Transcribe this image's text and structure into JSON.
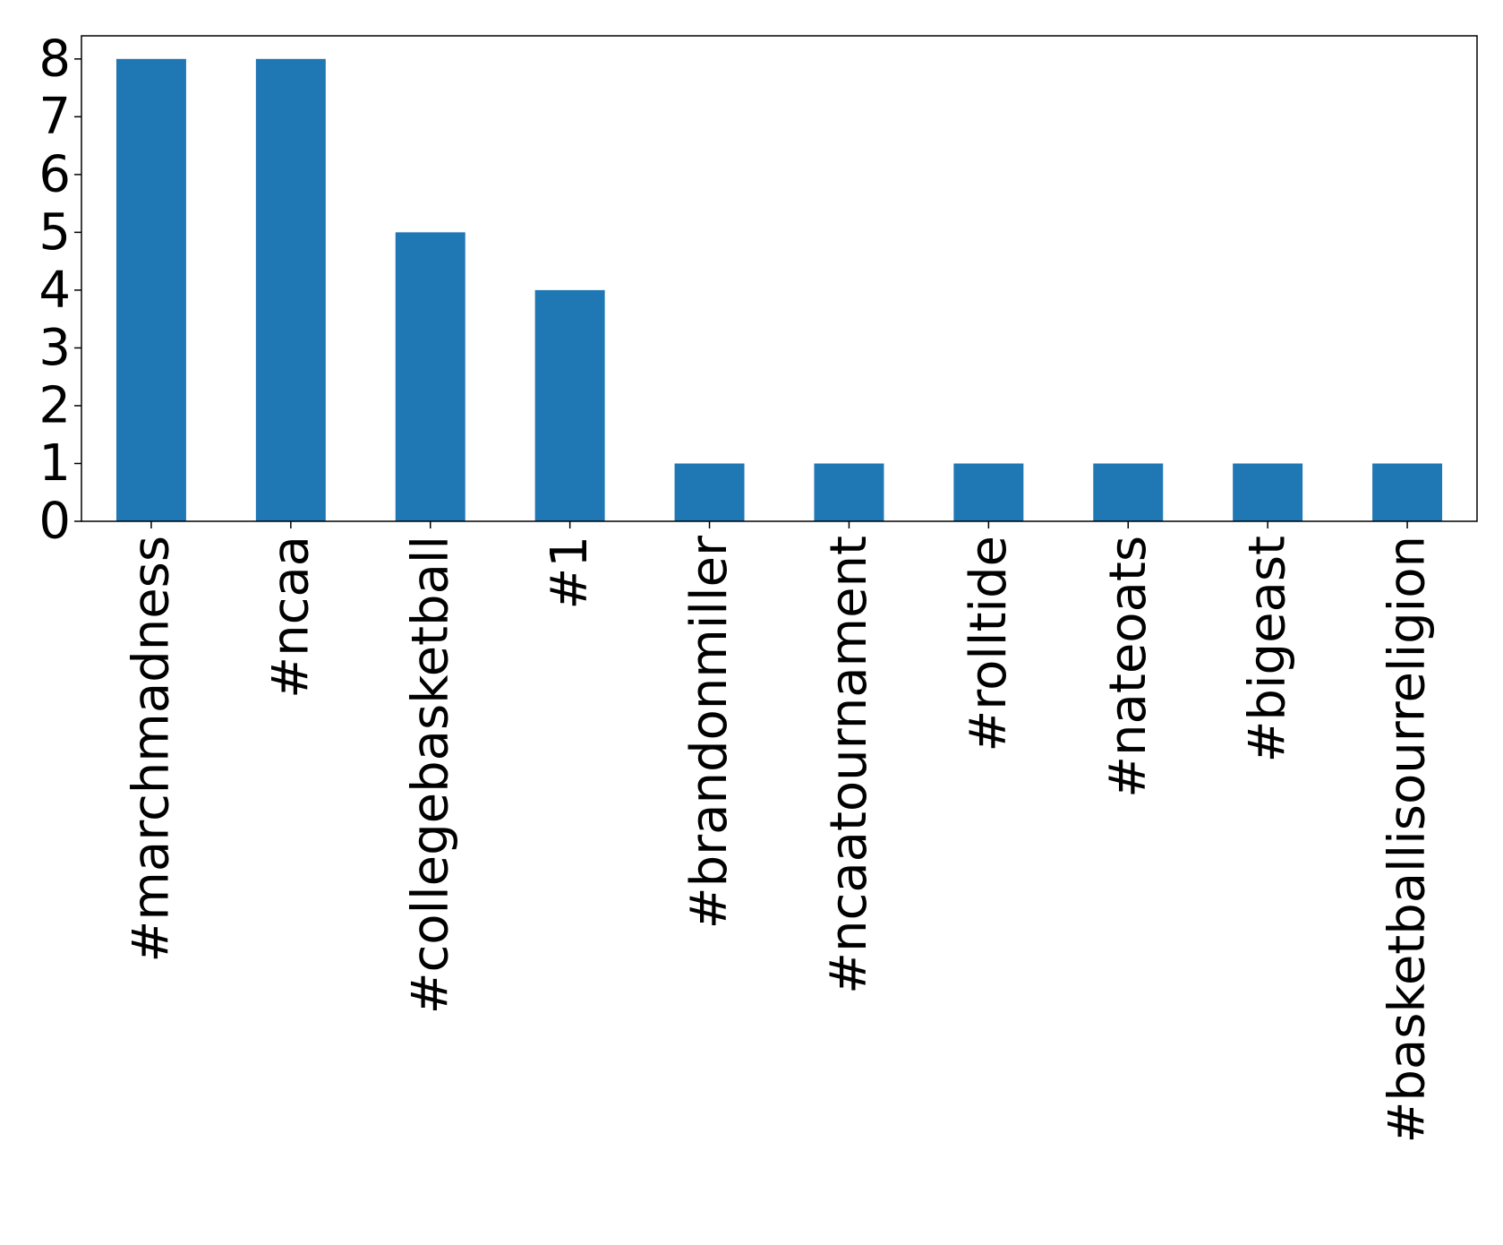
{
  "chart_data": {
    "type": "bar",
    "title": "",
    "xlabel": "",
    "ylabel": "",
    "categories": [
      "#marchmadness",
      "#ncaa",
      "#collegebasketball",
      "#1",
      "#brandonmiller",
      "#ncaatournament",
      "#rolltide",
      "#nateoats",
      "#bigeast",
      "#basketballisourreligion"
    ],
    "values": [
      8,
      8,
      5,
      4,
      1,
      1,
      1,
      1,
      1,
      1
    ],
    "ylim": [
      0,
      8.4
    ],
    "yticks": [
      0,
      1,
      2,
      3,
      4,
      5,
      6,
      7,
      8
    ],
    "bar_color": "#1f77b4",
    "grid": false,
    "legend": "none"
  }
}
